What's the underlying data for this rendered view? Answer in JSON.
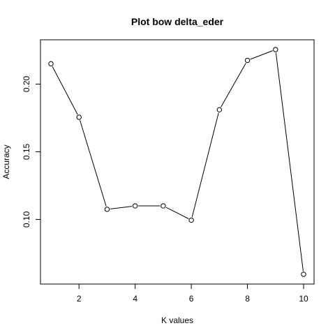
{
  "chart_data": {
    "type": "line",
    "title": "Plot bow delta_eder",
    "xlabel": "K values",
    "ylabel": "Accuracy",
    "x": [
      1,
      2,
      3,
      4,
      5,
      6,
      7,
      8,
      9,
      10
    ],
    "values": [
      0.215,
      0.1755,
      0.1075,
      0.11,
      0.11,
      0.0995,
      0.181,
      0.2175,
      0.2255,
      0.0595
    ],
    "xlim": [
      1,
      10
    ],
    "ylim": [
      0.0595,
      0.2255
    ],
    "x_ticks": [
      2,
      4,
      6,
      8,
      10
    ],
    "x_tick_labels": [
      "2",
      "4",
      "6",
      "8",
      "10"
    ],
    "y_ticks": [
      0.1,
      0.15,
      0.2
    ],
    "y_tick_labels": [
      "0.10",
      "0.15",
      "0.20"
    ],
    "grid": false,
    "markers": "open-circle"
  }
}
